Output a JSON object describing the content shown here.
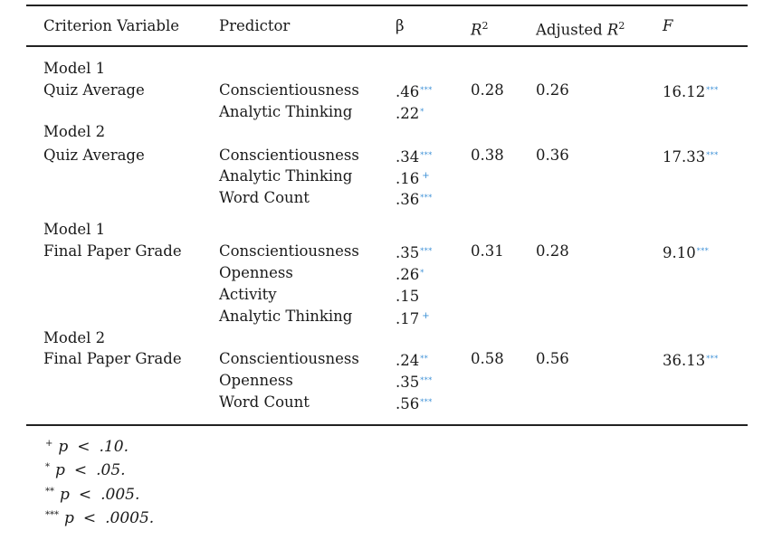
{
  "headers": {
    "criterion": "Criterion Variable",
    "predictor": "Predictor",
    "beta": "β",
    "r2": "R",
    "r2_sup": "2",
    "adj": "Adjusted ",
    "adj_r": "R",
    "adj_sup": "2",
    "f": "F"
  },
  "table": {
    "model_labels": [
      "Model 1",
      "Model 2",
      "Model 1",
      "Model 2"
    ],
    "criteria": [
      "Quiz Average",
      "Quiz Average",
      "Final Paper Grade",
      "Final Paper Grade"
    ],
    "predictors": [
      "Conscientiousness",
      "Analytic Thinking",
      "Conscientiousness",
      "Analytic Thinking",
      "Word Count",
      "Conscientiousness",
      "Openness",
      "Activity",
      "Analytic Thinking",
      "Conscientiousness",
      "Openness",
      "Word Count"
    ],
    "betas": [
      ".46",
      ".22",
      ".34",
      ".16",
      ".36",
      ".35",
      ".26",
      ".15",
      ".17",
      ".24",
      ".35",
      ".56"
    ],
    "beta_marks": [
      "***",
      "*",
      "***",
      "+",
      "***",
      "***",
      "*",
      "",
      "+",
      "**",
      "***",
      "***"
    ],
    "r2": [
      "0.28",
      "0.38",
      "0.31",
      "0.58"
    ],
    "adj_r2": [
      "0.26",
      "0.36",
      "0.28",
      "0.56"
    ],
    "f": [
      "16.12",
      "17.33",
      "9.10",
      "36.13"
    ],
    "f_marks": [
      "***",
      "***",
      "***",
      "***"
    ]
  },
  "notes": [
    {
      "symbol": "+",
      "p": "p",
      "op": "<",
      "value": ".10."
    },
    {
      "symbol": "*",
      "p": "p",
      "op": "<",
      "value": ".05."
    },
    {
      "symbol": "**",
      "p": "p",
      "op": "<",
      "value": ".005."
    },
    {
      "symbol": "***",
      "p": "p",
      "op": "<",
      "value": ".0005."
    }
  ]
}
